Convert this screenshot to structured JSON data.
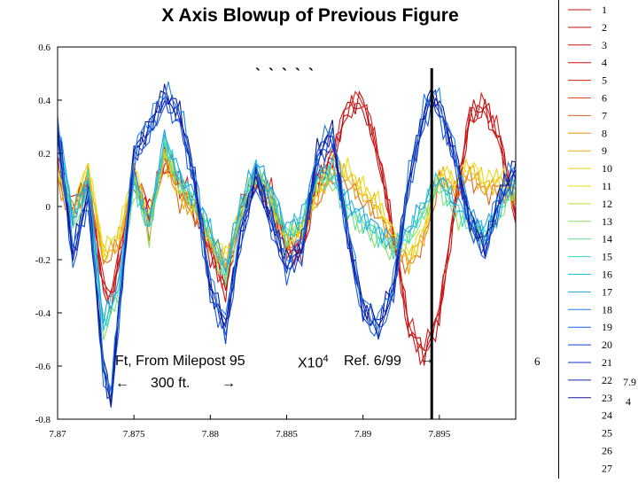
{
  "chart_data": {
    "type": "line",
    "title": "X Axis Blowup of Previous Figure",
    "xlabel": "",
    "ylabel": "",
    "xlim": [
      7.87,
      7.9
    ],
    "ylim": [
      -0.8,
      0.6
    ],
    "x_ticks": [
      "7.87",
      "7.875",
      "7.88",
      "7.885",
      "7.89",
      "7.895"
    ],
    "y_ticks": [
      "0.6",
      "0.4",
      "0.2",
      "0",
      "-0.2",
      "-0.4",
      "-0.6",
      "-0.8"
    ],
    "grid": false,
    "legend_position": "right",
    "reference_line_x": 7.8945,
    "legend": [
      {
        "label": "1",
        "color": "#c81010"
      },
      {
        "label": "2",
        "color": "#c81010"
      },
      {
        "label": "3",
        "color": "#c81010"
      },
      {
        "label": "4",
        "color": "#c81010"
      },
      {
        "label": "5",
        "color": "#d02010"
      },
      {
        "label": "6",
        "color": "#d84810"
      },
      {
        "label": "7",
        "color": "#e06818"
      },
      {
        "label": "8",
        "color": "#e89010"
      },
      {
        "label": "9",
        "color": "#f0b010"
      },
      {
        "label": "10",
        "color": "#f0d010"
      },
      {
        "label": "11",
        "color": "#e8e010"
      },
      {
        "label": "12",
        "color": "#c0e030"
      },
      {
        "label": "13",
        "color": "#90e060"
      },
      {
        "label": "14",
        "color": "#60e090"
      },
      {
        "label": "15",
        "color": "#30d8c0"
      },
      {
        "label": "16",
        "color": "#20c0e0"
      },
      {
        "label": "17",
        "color": "#20a0e8"
      },
      {
        "label": "18",
        "color": "#2080e8"
      },
      {
        "label": "19",
        "color": "#1860e0"
      },
      {
        "label": "20",
        "color": "#1040d0"
      },
      {
        "label": "21",
        "color": "#1030c0"
      },
      {
        "label": "22",
        "color": "#1020a8"
      },
      {
        "label": "23",
        "color": "#101890"
      },
      {
        "label": "24",
        "color": ""
      },
      {
        "label": "25",
        "color": ""
      },
      {
        "label": "26",
        "color": ""
      },
      {
        "label": "27",
        "color": ""
      }
    ],
    "series_groups": [
      {
        "group": "red",
        "colors": [
          "#c81010",
          "#d01818",
          "#b80c0c",
          "#d82020"
        ],
        "x": [
          7.87,
          7.871,
          7.872,
          7.873,
          7.8735,
          7.874,
          7.875,
          7.876,
          7.877,
          7.878,
          7.879,
          7.88,
          7.881,
          7.882,
          7.883,
          7.884,
          7.885,
          7.886,
          7.887,
          7.888,
          7.889,
          7.89,
          7.891,
          7.892,
          7.893,
          7.8935,
          7.894,
          7.895,
          7.896,
          7.897,
          7.898,
          7.899,
          7.9
        ],
        "values": [
          0.16,
          0.0,
          0.1,
          -0.3,
          -0.34,
          -0.2,
          0.12,
          -0.02,
          0.18,
          0.1,
          0.0,
          -0.16,
          -0.3,
          0.0,
          0.1,
          0.05,
          -0.15,
          -0.16,
          0.1,
          0.2,
          0.38,
          0.4,
          0.2,
          -0.1,
          -0.45,
          -0.5,
          -0.55,
          -0.4,
          0.0,
          0.35,
          0.38,
          0.25,
          -0.04
        ]
      },
      {
        "group": "orange-yellow",
        "colors": [
          "#e06818",
          "#e89010",
          "#f0b010",
          "#f0d010",
          "#e8e010"
        ],
        "x": [
          7.87,
          7.871,
          7.872,
          7.873,
          7.874,
          7.875,
          7.876,
          7.877,
          7.878,
          7.879,
          7.88,
          7.881,
          7.882,
          7.883,
          7.884,
          7.885,
          7.886,
          7.887,
          7.888,
          7.889,
          7.89,
          7.891,
          7.892,
          7.893,
          7.894,
          7.895,
          7.896,
          7.897,
          7.898,
          7.899,
          7.9
        ],
        "values": [
          0.12,
          -0.02,
          0.14,
          -0.18,
          -0.12,
          0.12,
          -0.06,
          0.2,
          0.05,
          0.0,
          -0.12,
          -0.2,
          -0.02,
          0.12,
          0.02,
          -0.12,
          -0.08,
          0.05,
          0.14,
          0.12,
          0.05,
          0.0,
          -0.12,
          -0.2,
          -0.1,
          0.12,
          0.08,
          0.14,
          0.08,
          0.1,
          0.05
        ]
      },
      {
        "group": "green-cyan",
        "colors": [
          "#90e060",
          "#60e090",
          "#30d8c0",
          "#20c0e0",
          "#20a0e8"
        ],
        "x": [
          7.87,
          7.871,
          7.872,
          7.873,
          7.874,
          7.875,
          7.876,
          7.877,
          7.878,
          7.879,
          7.88,
          7.881,
          7.882,
          7.883,
          7.884,
          7.885,
          7.886,
          7.887,
          7.888,
          7.889,
          7.89,
          7.891,
          7.892,
          7.893,
          7.894,
          7.895,
          7.896,
          7.897,
          7.898,
          7.899,
          7.9
        ],
        "values": [
          0.3,
          -0.05,
          0.1,
          -0.45,
          -0.3,
          0.1,
          -0.08,
          0.25,
          0.1,
          0.02,
          -0.1,
          -0.25,
          0.0,
          0.15,
          0.05,
          -0.1,
          -0.05,
          0.12,
          0.12,
          0.0,
          -0.05,
          -0.1,
          -0.15,
          -0.1,
          0.0,
          0.1,
          0.0,
          -0.05,
          -0.1,
          0.0,
          0.1
        ]
      },
      {
        "group": "blue",
        "colors": [
          "#1860e0",
          "#1040d0",
          "#1030c0",
          "#1020a8",
          "#101890",
          "#2080e8"
        ],
        "x": [
          7.87,
          7.871,
          7.872,
          7.873,
          7.8735,
          7.874,
          7.875,
          7.876,
          7.877,
          7.878,
          7.879,
          7.88,
          7.881,
          7.882,
          7.883,
          7.884,
          7.885,
          7.886,
          7.887,
          7.888,
          7.889,
          7.89,
          7.891,
          7.892,
          7.893,
          7.894,
          7.8945,
          7.895,
          7.896,
          7.897,
          7.898,
          7.899,
          7.9
        ],
        "values": [
          0.3,
          -0.18,
          0.05,
          -0.6,
          -0.72,
          -0.4,
          0.2,
          0.3,
          0.42,
          0.35,
          0.1,
          -0.3,
          -0.45,
          -0.1,
          0.12,
          -0.05,
          -0.22,
          -0.15,
          0.2,
          0.28,
          -0.1,
          -0.38,
          -0.45,
          -0.3,
          0.1,
          0.35,
          0.42,
          0.38,
          0.2,
          -0.05,
          -0.15,
          0.05,
          0.15
        ]
      }
    ]
  },
  "annotations": {
    "tick_marks_top": "` ` ` ` `",
    "ft_label": "Ft, From Milepost 95",
    "x_multiplier": "X10",
    "x_multiplier_exp": "4",
    "ref_label": "Ref. 6/99",
    "ref_arrow": "→",
    "span_left_arrow": "←",
    "span_label": "300 ft.",
    "span_right_arrow": "→",
    "stray_6": "6",
    "stray_79": "7.9",
    "stray_4": "4"
  }
}
